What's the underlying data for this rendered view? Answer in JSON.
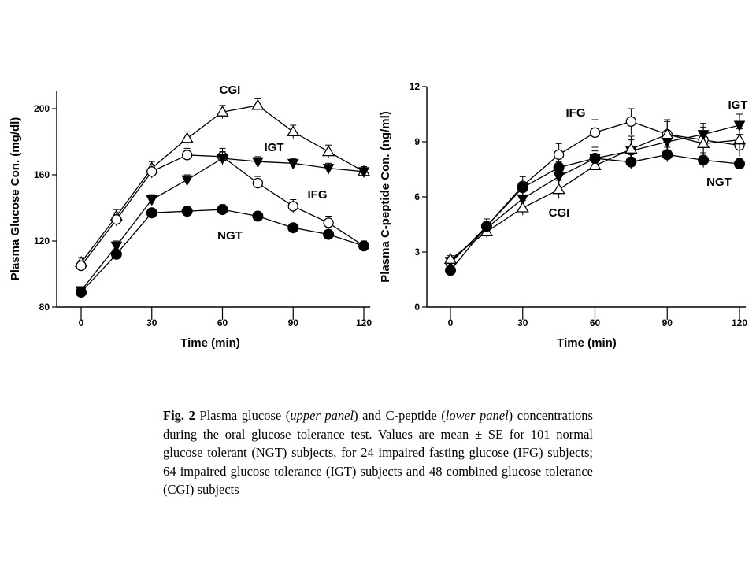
{
  "chart_data": [
    {
      "type": "line",
      "panel": "glucose",
      "title": "",
      "xlabel": "Time (min)",
      "ylabel": "Plasma Glucose Con. (mg/dl)",
      "xlim": [
        0,
        120
      ],
      "ylim": [
        80,
        210
      ],
      "xticks": [
        0,
        30,
        60,
        90,
        120
      ],
      "yticks": [
        80,
        120,
        160,
        200
      ],
      "grid": false,
      "legend": "none",
      "x": [
        0,
        15,
        30,
        45,
        60,
        75,
        90,
        105,
        120
      ],
      "series": [
        {
          "name": "CGI",
          "marker": "open-triangle",
          "values": [
            107,
            135,
            164,
            182,
            198,
            202,
            186,
            174,
            162
          ],
          "errors": [
            3,
            4,
            4,
            4,
            4,
            4,
            4,
            4,
            3
          ]
        },
        {
          "name": "IFG",
          "marker": "open-circle",
          "values": [
            105,
            133,
            162,
            172,
            171,
            155,
            141,
            131,
            117
          ],
          "errors": [
            3,
            4,
            4,
            4,
            5,
            4,
            4,
            4,
            3
          ]
        },
        {
          "name": "IGT",
          "marker": "filled-down-triangle",
          "values": [
            90,
            117,
            145,
            157,
            170,
            168,
            167,
            164,
            162
          ],
          "errors": [
            2,
            3,
            3,
            3,
            4,
            3,
            3,
            3,
            3
          ]
        },
        {
          "name": "NGT",
          "marker": "filled-circle",
          "values": [
            89,
            112,
            137,
            138,
            139,
            135,
            128,
            124,
            117
          ],
          "errors": [
            2,
            2,
            2,
            2,
            3,
            2,
            2,
            2,
            2
          ]
        }
      ]
    },
    {
      "type": "line",
      "panel": "c-peptide",
      "title": "",
      "xlabel": "Time (min)",
      "ylabel": "Plasma C-peptide Con. (ng/ml)",
      "xlim": [
        0,
        120
      ],
      "ylim": [
        0,
        12
      ],
      "xticks": [
        0,
        30,
        60,
        90,
        120
      ],
      "yticks": [
        0,
        3,
        6,
        9,
        12
      ],
      "grid": false,
      "legend": "none",
      "x": [
        0,
        15,
        30,
        45,
        60,
        75,
        90,
        105,
        120
      ],
      "series": [
        {
          "name": "IFG",
          "marker": "open-circle",
          "values": [
            2.4,
            4.4,
            6.6,
            8.3,
            9.5,
            10.1,
            9.4,
            9.1,
            8.8
          ],
          "errors": [
            0.2,
            0.4,
            0.5,
            0.6,
            0.7,
            0.7,
            0.8,
            0.7,
            0.6
          ]
        },
        {
          "name": "IGT",
          "marker": "filled-down-triangle",
          "values": [
            2.5,
            4.3,
            5.9,
            7.1,
            8.1,
            8.5,
            9.0,
            9.4,
            9.9
          ],
          "errors": [
            0.2,
            0.3,
            0.4,
            0.5,
            0.6,
            0.6,
            0.6,
            0.6,
            0.6
          ]
        },
        {
          "name": "CGI",
          "marker": "open-triangle",
          "values": [
            2.6,
            4.1,
            5.4,
            6.4,
            7.7,
            8.6,
            9.4,
            8.9,
            9.1
          ],
          "errors": [
            0.2,
            0.3,
            0.4,
            0.5,
            0.6,
            0.7,
            0.7,
            0.6,
            0.6
          ]
        },
        {
          "name": "NGT",
          "marker": "filled-circle",
          "values": [
            2.0,
            4.4,
            6.5,
            7.6,
            8.1,
            7.9,
            8.3,
            8.0,
            7.8
          ],
          "errors": [
            0.1,
            0.2,
            0.3,
            0.3,
            0.4,
            0.4,
            0.4,
            0.4,
            0.3
          ]
        }
      ]
    }
  ],
  "caption": {
    "fig_label": "Fig. 2",
    "text_1": " Plasma glucose (",
    "upper_panel": "upper panel",
    "text_2": ") and C-peptide (",
    "lower_panel": "lower panel",
    "text_3": ") concentrations during the oral glucose tolerance test. Values are mean ± SE for 101 normal glucose tolerant (NGT) subjects, for 24 impaired fasting glucose (IFG) subjects; 64 impaired glucose tolerance (IGT) subjects and 48 combined glucose tolerance (CGI) subjects"
  }
}
